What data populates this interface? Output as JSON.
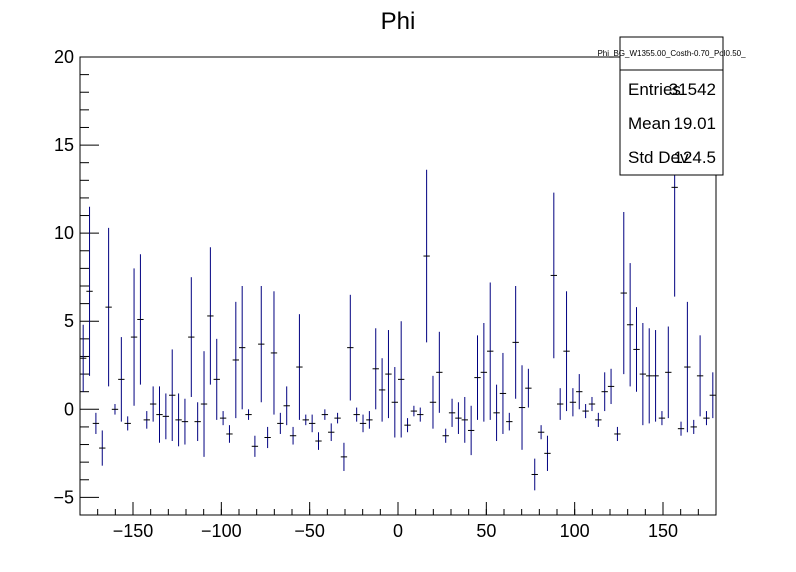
{
  "chart_data": {
    "type": "scatter",
    "title": "Phi",
    "xlabel": "",
    "ylabel": "",
    "xlim": [
      -180,
      180
    ],
    "ylim": [
      -6,
      20
    ],
    "xticks": [
      -150,
      -100,
      -50,
      0,
      50,
      100,
      150
    ],
    "yticks": [
      -5,
      0,
      5,
      10,
      15,
      20
    ],
    "xtick_labels": [
      "−150",
      "−100",
      "−50",
      "0",
      "50",
      "100",
      "150"
    ],
    "ytick_labels": [
      "−5",
      "0",
      "5",
      "10",
      "15",
      "20"
    ],
    "grid": false,
    "series_color": "#000080",
    "bin_width": 3.6,
    "points": [
      {
        "x": -178.2,
        "y": 2.9,
        "err": 1.9
      },
      {
        "x": -174.6,
        "y": 6.7,
        "err": 4.8
      },
      {
        "x": -171.0,
        "y": -0.8,
        "err": 0.6
      },
      {
        "x": -167.4,
        "y": -2.2,
        "err": 1.0
      },
      {
        "x": -163.8,
        "y": 5.8,
        "err": 4.5
      },
      {
        "x": -160.2,
        "y": 0.0,
        "err": 0.3
      },
      {
        "x": -156.6,
        "y": 1.7,
        "err": 2.4
      },
      {
        "x": -153.0,
        "y": -0.8,
        "err": 0.4
      },
      {
        "x": -149.4,
        "y": 4.1,
        "err": 3.9
      },
      {
        "x": -145.8,
        "y": 5.1,
        "err": 3.7
      },
      {
        "x": -142.2,
        "y": -0.6,
        "err": 0.5
      },
      {
        "x": -138.6,
        "y": 0.3,
        "err": 1.0
      },
      {
        "x": -135.0,
        "y": -0.3,
        "err": 1.6
      },
      {
        "x": -131.4,
        "y": -0.4,
        "err": 1.3
      },
      {
        "x": -127.8,
        "y": 0.8,
        "err": 2.6
      },
      {
        "x": -124.2,
        "y": -0.6,
        "err": 1.5
      },
      {
        "x": -120.6,
        "y": -0.7,
        "err": 1.3
      },
      {
        "x": -117.0,
        "y": 4.1,
        "err": 3.4
      },
      {
        "x": -113.4,
        "y": -0.7,
        "err": 1.1
      },
      {
        "x": -109.8,
        "y": 0.3,
        "err": 3.0
      },
      {
        "x": -106.2,
        "y": 5.3,
        "err": 3.9
      },
      {
        "x": -102.6,
        "y": 1.7,
        "err": 2.3
      },
      {
        "x": -99.0,
        "y": -0.5,
        "err": 0.4
      },
      {
        "x": -95.4,
        "y": -1.4,
        "err": 0.5
      },
      {
        "x": -91.8,
        "y": 2.8,
        "err": 3.3
      },
      {
        "x": -88.2,
        "y": 3.5,
        "err": 3.5
      },
      {
        "x": -84.6,
        "y": -0.3,
        "err": 0.3
      },
      {
        "x": -81.0,
        "y": -2.1,
        "err": 0.6
      },
      {
        "x": -77.4,
        "y": 3.7,
        "err": 3.3
      },
      {
        "x": -73.8,
        "y": -1.6,
        "err": 0.6
      },
      {
        "x": -70.2,
        "y": 3.2,
        "err": 3.5
      },
      {
        "x": -66.6,
        "y": -0.8,
        "err": 0.6
      },
      {
        "x": -63.0,
        "y": 0.2,
        "err": 1.1
      },
      {
        "x": -59.4,
        "y": -1.5,
        "err": 0.5
      },
      {
        "x": -55.8,
        "y": 2.4,
        "err": 3.0
      },
      {
        "x": -52.2,
        "y": -0.6,
        "err": 0.3
      },
      {
        "x": -48.6,
        "y": -0.8,
        "err": 0.5
      },
      {
        "x": -45.0,
        "y": -1.8,
        "err": 0.5
      },
      {
        "x": -41.4,
        "y": -0.3,
        "err": 0.3
      },
      {
        "x": -37.8,
        "y": -1.3,
        "err": 0.5
      },
      {
        "x": -34.2,
        "y": -0.5,
        "err": 0.3
      },
      {
        "x": -30.6,
        "y": -2.7,
        "err": 0.8
      },
      {
        "x": -27.0,
        "y": 3.5,
        "err": 3.0
      },
      {
        "x": -23.4,
        "y": -0.3,
        "err": 0.4
      },
      {
        "x": -19.8,
        "y": -0.8,
        "err": 0.5
      },
      {
        "x": -16.2,
        "y": -0.6,
        "err": 0.5
      },
      {
        "x": -12.6,
        "y": 2.3,
        "err": 2.3
      },
      {
        "x": -9.0,
        "y": 1.1,
        "err": 1.8
      },
      {
        "x": -5.4,
        "y": 2.0,
        "err": 2.5
      },
      {
        "x": -1.8,
        "y": 0.4,
        "err": 2.0
      },
      {
        "x": 1.8,
        "y": 1.7,
        "err": 3.3
      },
      {
        "x": 5.4,
        "y": -0.9,
        "err": 0.4
      },
      {
        "x": 9.0,
        "y": -0.1,
        "err": 0.3
      },
      {
        "x": 12.6,
        "y": -0.3,
        "err": 0.4
      },
      {
        "x": 16.2,
        "y": 8.7,
        "err": 4.9
      },
      {
        "x": 19.8,
        "y": 0.4,
        "err": 1.5
      },
      {
        "x": 23.4,
        "y": 2.1,
        "err": 2.3
      },
      {
        "x": 27.0,
        "y": -1.5,
        "err": 0.4
      },
      {
        "x": 30.6,
        "y": -0.2,
        "err": 0.8
      },
      {
        "x": 34.2,
        "y": -0.5,
        "err": 0.9
      },
      {
        "x": 37.8,
        "y": -0.6,
        "err": 1.3
      },
      {
        "x": 41.4,
        "y": -1.2,
        "err": 1.4
      },
      {
        "x": 45.0,
        "y": 1.8,
        "err": 2.4
      },
      {
        "x": 48.6,
        "y": 2.1,
        "err": 2.8
      },
      {
        "x": 52.2,
        "y": 3.3,
        "err": 3.9
      },
      {
        "x": 55.8,
        "y": -0.2,
        "err": 1.6
      },
      {
        "x": 59.4,
        "y": 0.9,
        "err": 2.3
      },
      {
        "x": 63.0,
        "y": -0.7,
        "err": 0.5
      },
      {
        "x": 66.6,
        "y": 3.8,
        "err": 3.2
      },
      {
        "x": 70.2,
        "y": 0.1,
        "err": 2.4
      },
      {
        "x": 73.8,
        "y": 1.2,
        "err": 1.1
      },
      {
        "x": 77.4,
        "y": -3.7,
        "err": 0.9
      },
      {
        "x": 81.0,
        "y": -1.3,
        "err": 0.4
      },
      {
        "x": 84.6,
        "y": -2.5,
        "err": 1.0
      },
      {
        "x": 88.2,
        "y": 7.6,
        "err": 4.7
      },
      {
        "x": 91.8,
        "y": 0.3,
        "err": 0.9
      },
      {
        "x": 95.4,
        "y": 3.3,
        "err": 3.4
      },
      {
        "x": 99.0,
        "y": 0.4,
        "err": 0.8
      },
      {
        "x": 102.6,
        "y": 1.0,
        "err": 1.0
      },
      {
        "x": 106.2,
        "y": -0.1,
        "err": 0.4
      },
      {
        "x": 109.8,
        "y": 0.3,
        "err": 0.4
      },
      {
        "x": 113.4,
        "y": -0.6,
        "err": 0.4
      },
      {
        "x": 117.0,
        "y": 1.0,
        "err": 1.1
      },
      {
        "x": 120.6,
        "y": 1.3,
        "err": 1.0
      },
      {
        "x": 124.2,
        "y": -1.4,
        "err": 0.4
      },
      {
        "x": 127.8,
        "y": 6.6,
        "err": 4.6
      },
      {
        "x": 131.4,
        "y": 4.8,
        "err": 3.5
      },
      {
        "x": 135.0,
        "y": 3.4,
        "err": 2.4
      },
      {
        "x": 138.6,
        "y": 2.0,
        "err": 2.9
      },
      {
        "x": 142.2,
        "y": 1.9,
        "err": 2.7
      },
      {
        "x": 145.8,
        "y": 1.9,
        "err": 2.6
      },
      {
        "x": 149.4,
        "y": -0.5,
        "err": 0.4
      },
      {
        "x": 153.0,
        "y": 2.1,
        "err": 2.6
      },
      {
        "x": 156.6,
        "y": 12.6,
        "err": 6.2
      },
      {
        "x": 160.2,
        "y": -1.1,
        "err": 0.4
      },
      {
        "x": 163.8,
        "y": 2.4,
        "err": 3.7
      },
      {
        "x": 167.4,
        "y": -1.0,
        "err": 0.4
      },
      {
        "x": 171.0,
        "y": 1.9,
        "err": 2.3
      },
      {
        "x": 174.6,
        "y": -0.5,
        "err": 0.4
      },
      {
        "x": 178.2,
        "y": 0.8,
        "err": 1.3
      }
    ]
  },
  "stats": {
    "name": "Phi_BG_W1355.00_Costh-0.70_Pol0.50_",
    "rows": [
      {
        "label": "Entries",
        "value": "31542"
      },
      {
        "label": "Mean",
        "value": "19.01"
      },
      {
        "label": "Std Dev",
        "value": "124.5"
      }
    ]
  }
}
